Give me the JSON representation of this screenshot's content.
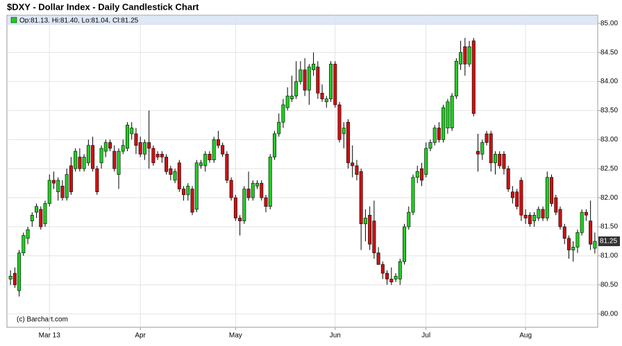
{
  "chart_data": {
    "type": "candlestick",
    "title": "$DXY - Dollar Index - Daily Candlestick Chart",
    "legend": "Op:81.13, Hi:81.40, Lo:81.04, Cl:81.25",
    "credit": "(c) Barchart.com",
    "up_color": "#22cc22",
    "down_color": "#cc1111",
    "grid": true,
    "ylim": [
      79.77,
      85.14
    ],
    "yticks": [
      {
        "value": 80,
        "label": "80.00"
      },
      {
        "value": 80.5,
        "label": "80.50"
      },
      {
        "value": 81,
        "label": "81.00"
      },
      {
        "value": 81.5,
        "label": "81.50"
      },
      {
        "value": 82,
        "label": "82.00"
      },
      {
        "value": 82.5,
        "label": "82.50"
      },
      {
        "value": 83,
        "label": "83.00"
      },
      {
        "value": 83.5,
        "label": "83.50"
      },
      {
        "value": 84,
        "label": "84.00"
      },
      {
        "value": 84.5,
        "label": "84.50"
      },
      {
        "value": 85,
        "label": "85.00"
      }
    ],
    "categories": [
      null,
      null,
      null,
      null,
      null,
      null,
      null,
      null,
      null,
      "Mar 13",
      null,
      null,
      null,
      null,
      null,
      null,
      null,
      null,
      null,
      null,
      null,
      null,
      null,
      null,
      null,
      null,
      null,
      null,
      null,
      null,
      "Apr",
      null,
      null,
      null,
      null,
      null,
      null,
      null,
      null,
      null,
      null,
      null,
      null,
      null,
      null,
      null,
      null,
      null,
      null,
      null,
      null,
      null,
      "May",
      null,
      null,
      null,
      null,
      null,
      null,
      null,
      null,
      null,
      null,
      null,
      null,
      null,
      null,
      null,
      null,
      null,
      null,
      null,
      null,
      null,
      null,
      "Jun",
      null,
      null,
      null,
      null,
      null,
      null,
      null,
      null,
      null,
      null,
      null,
      null,
      null,
      null,
      null,
      null,
      null,
      null,
      null,
      null,
      "Jul",
      null,
      null,
      null,
      null,
      null,
      null,
      null,
      null,
      null,
      null,
      null,
      null,
      null,
      null,
      null,
      null,
      null,
      null,
      null,
      null,
      null,
      null,
      "Aug",
      null,
      null,
      null,
      null,
      null,
      null,
      null,
      null,
      null,
      null,
      null,
      null,
      null,
      null,
      null,
      null
    ],
    "open": [
      80.6,
      80.7,
      80.4,
      81.05,
      81.3,
      81.6,
      81.75,
      81.8,
      81.55,
      81.9,
      82.3,
      82.1,
      82.2,
      82.0,
      82.55,
      82.5,
      82.7,
      82.5,
      82.6,
      82.9,
      82.5,
      82.6,
      82.8,
      82.95,
      82.8,
      82.4,
      82.8,
      82.85,
      83.1,
      83.1,
      82.95,
      82.75,
      82.95,
      82.85,
      82.75,
      82.75,
      82.7,
      82.5,
      82.3,
      82.6,
      82.15,
      82.05,
      82.15,
      81.8,
      82.55,
      82.55,
      82.75,
      82.65,
      83.0,
      82.9,
      82.75,
      82.3,
      82.0,
      81.65,
      81.6,
      82.15,
      82.0,
      82.2,
      82.25,
      82.0,
      81.85,
      82.7,
      83.1,
      83.3,
      83.55,
      83.7,
      83.75,
      84.0,
      84.2,
      83.85,
      84.2,
      84.25,
      83.8,
      83.65,
      83.7,
      84.3,
      83.6,
      83.1,
      83.3,
      82.6,
      82.55,
      82.45,
      81.55,
      81.7,
      81.6,
      81.05,
      80.85,
      80.7,
      80.6,
      80.6,
      80.6,
      80.9,
      81.5,
      81.75,
      82.35,
      82.5,
      82.4,
      82.85,
      82.95,
      83.2,
      83.0,
      83.2,
      83.2,
      83.75,
      84.3,
      84.6,
      84.3,
      84.7,
      82.8,
      82.75,
      83.1,
      83.1,
      82.6,
      82.75,
      82.75,
      82.5,
      82.1,
      82.1,
      82.3,
      81.7,
      81.7,
      81.6,
      81.65,
      81.8,
      81.65,
      82.35,
      82.0,
      81.8,
      81.5,
      81.3,
      81.1,
      81.15,
      81.4,
      81.75,
      81.6,
      81.13
    ],
    "high": [
      80.75,
      80.8,
      81.1,
      81.4,
      81.5,
      81.75,
      81.9,
      81.85,
      81.95,
      82.4,
      82.45,
      82.35,
      82.3,
      82.5,
      82.7,
      82.85,
      82.85,
      82.75,
      83.0,
      83.05,
      82.55,
      82.9,
      83.0,
      83.0,
      82.9,
      82.85,
      83.0,
      83.3,
      83.3,
      83.2,
      83.05,
      83.0,
      83.5,
      82.9,
      82.8,
      82.8,
      82.75,
      82.55,
      82.5,
      82.65,
      82.2,
      82.25,
      82.2,
      82.65,
      82.65,
      82.8,
      82.8,
      83.05,
      83.15,
      82.95,
      82.8,
      82.35,
      82.05,
      81.7,
      82.2,
      82.45,
      82.3,
      82.3,
      82.3,
      82.05,
      82.75,
      83.15,
      83.45,
      83.7,
      83.9,
      84.1,
      84.35,
      84.35,
      84.4,
      84.3,
      84.5,
      84.35,
      83.95,
      83.75,
      84.35,
      84.35,
      83.65,
      83.3,
      83.35,
      82.9,
      82.65,
      82.5,
      81.8,
      81.85,
      81.95,
      81.15,
      80.9,
      80.75,
      80.8,
      80.7,
      80.95,
      81.55,
      81.85,
      82.4,
      82.55,
      82.6,
      82.95,
      83.0,
      83.25,
      83.3,
      83.6,
      83.7,
      83.8,
      84.4,
      84.7,
      84.75,
      84.7,
      84.75,
      83.1,
      83.0,
      83.15,
      83.15,
      82.8,
      82.8,
      82.8,
      82.55,
      82.2,
      82.15,
      82.35,
      81.8,
      81.75,
      81.75,
      81.85,
      81.85,
      82.45,
      82.4,
      82.05,
      81.85,
      81.55,
      81.35,
      81.25,
      81.45,
      81.8,
      81.8,
      81.95,
      81.4
    ],
    "low": [
      80.5,
      80.45,
      80.3,
      81.0,
      81.2,
      81.5,
      81.65,
      81.45,
      81.5,
      81.85,
      82.15,
      81.95,
      81.95,
      81.95,
      82.05,
      82.45,
      82.45,
      82.45,
      82.55,
      82.45,
      82.05,
      82.5,
      82.7,
      82.8,
      82.45,
      82.15,
      82.75,
      82.8,
      83.0,
      82.75,
      82.7,
      82.65,
      82.5,
      82.55,
      82.65,
      82.6,
      82.4,
      82.3,
      82.25,
      82.1,
      81.95,
      81.95,
      81.7,
      81.75,
      82.5,
      82.45,
      82.6,
      82.6,
      82.85,
      82.7,
      82.25,
      81.95,
      81.6,
      81.35,
      81.55,
      81.95,
      81.95,
      82.15,
      81.95,
      81.75,
      81.8,
      82.65,
      83.05,
      83.2,
      83.5,
      83.65,
      83.7,
      83.95,
      83.75,
      83.6,
      84.1,
      83.7,
      83.65,
      83.55,
      83.65,
      83.55,
      82.95,
      82.85,
      82.5,
      82.35,
      82.3,
      81.1,
      81.25,
      81.1,
      80.95,
      80.85,
      80.6,
      80.5,
      80.5,
      80.55,
      80.5,
      80.85,
      81.45,
      81.7,
      82.25,
      82.2,
      82.35,
      82.8,
      82.9,
      82.95,
      82.95,
      83.1,
      83.15,
      83.7,
      84.2,
      84.1,
      84.25,
      83.4,
      82.45,
      82.65,
      82.9,
      82.45,
      82.4,
      82.5,
      82.4,
      82.1,
      81.9,
      81.8,
      81.6,
      81.55,
      81.5,
      81.5,
      81.6,
      81.6,
      81.6,
      81.85,
      81.7,
      81.45,
      81.2,
      80.95,
      80.9,
      81.05,
      81.35,
      81.6,
      81.1,
      81.04
    ],
    "close": [
      80.65,
      80.5,
      81.05,
      81.35,
      81.45,
      81.7,
      81.85,
      81.5,
      81.9,
      82.3,
      82.25,
      82.3,
      82.0,
      82.4,
      82.1,
      82.8,
      82.5,
      82.7,
      82.9,
      82.5,
      82.1,
      82.85,
      82.95,
      82.85,
      82.5,
      82.8,
      82.9,
      83.25,
      83.2,
      82.9,
      82.75,
      82.95,
      82.85,
      82.6,
      82.7,
      82.7,
      82.45,
      82.4,
      82.45,
      82.15,
      82.05,
      82.2,
      81.75,
      82.6,
      82.6,
      82.75,
      82.65,
      83.0,
      82.9,
      82.75,
      82.3,
      82.0,
      81.65,
      81.6,
      82.15,
      82.0,
      82.25,
      82.25,
      82.0,
      81.85,
      82.7,
      83.1,
      83.3,
      83.6,
      83.75,
      83.75,
      84.0,
      84.2,
      83.85,
      84.25,
      84.3,
      83.8,
      83.7,
      83.7,
      84.3,
      83.6,
      83.0,
      83.2,
      82.6,
      82.55,
      82.4,
      81.55,
      81.65,
      81.2,
      81.05,
      80.85,
      80.7,
      80.6,
      80.55,
      80.65,
      80.9,
      81.5,
      81.75,
      82.35,
      82.45,
      82.3,
      82.85,
      82.95,
      83.2,
      83.0,
      83.55,
      83.65,
      83.75,
      84.35,
      84.5,
      84.3,
      84.6,
      83.45,
      82.75,
      82.95,
      82.95,
      82.6,
      82.75,
      82.55,
      82.5,
      82.15,
      82.0,
      81.85,
      81.7,
      81.65,
      81.55,
      81.7,
      81.8,
      81.65,
      82.35,
      81.9,
      81.75,
      81.5,
      81.3,
      81.1,
      81.15,
      81.4,
      81.75,
      81.7,
      81.2,
      81.25
    ]
  }
}
